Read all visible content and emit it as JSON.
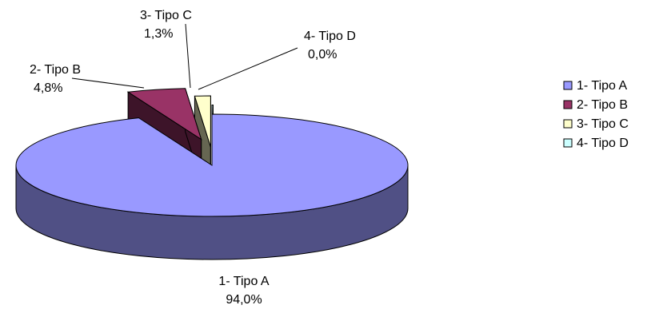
{
  "chart_data": {
    "type": "pie",
    "style": "3d-exploded",
    "title": "",
    "categories": [
      "1- Tipo A",
      "2- Tipo B",
      "3- Tipo C",
      "4- Tipo D"
    ],
    "values": [
      94.0,
      4.8,
      1.3,
      0.0
    ],
    "labels": [
      {
        "name": "1- Tipo A",
        "percent": "94,0%"
      },
      {
        "name": "2- Tipo B",
        "percent": "4,8%"
      },
      {
        "name": "3- Tipo C",
        "percent": "1,3%"
      },
      {
        "name": "4- Tipo D",
        "percent": "0,0%"
      }
    ],
    "colors": [
      "#9999FF",
      "#993366",
      "#FFFFCC",
      "#CCFFFF"
    ],
    "legend": {
      "position": "right",
      "entries": [
        "1- Tipo A",
        "2- Tipo B",
        "3- Tipo C",
        "4- Tipo D"
      ]
    },
    "grid": false
  }
}
